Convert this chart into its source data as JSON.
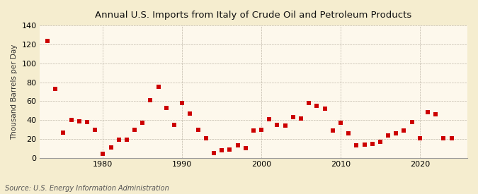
{
  "title": "Annual U.S. Imports from Italy of Crude Oil and Petroleum Products",
  "ylabel": "Thousand Barrels per Day",
  "source": "Source: U.S. Energy Information Administration",
  "background_color": "#f5edcf",
  "plot_background_color": "#fdf8ec",
  "marker_color": "#cc0000",
  "marker_size": 14,
  "ylim": [
    0,
    140
  ],
  "yticks": [
    0,
    20,
    40,
    60,
    80,
    100,
    120,
    140
  ],
  "xticks": [
    1980,
    1990,
    2000,
    2010,
    2020
  ],
  "xlim": [
    1972,
    2026
  ],
  "years": [
    1973,
    1974,
    1975,
    1976,
    1977,
    1978,
    1979,
    1980,
    1981,
    1982,
    1983,
    1984,
    1985,
    1986,
    1987,
    1988,
    1989,
    1990,
    1991,
    1992,
    1993,
    1994,
    1995,
    1996,
    1997,
    1998,
    1999,
    2000,
    2001,
    2002,
    2003,
    2004,
    2005,
    2006,
    2007,
    2008,
    2009,
    2010,
    2011,
    2012,
    2013,
    2014,
    2015,
    2016,
    2017,
    2018,
    2019,
    2020,
    2021,
    2022,
    2023,
    2024
  ],
  "values": [
    124,
    73,
    27,
    40,
    39,
    38,
    30,
    4,
    11,
    19,
    19,
    30,
    37,
    61,
    75,
    53,
    35,
    58,
    47,
    30,
    21,
    5,
    8,
    9,
    13,
    10,
    29,
    30,
    41,
    35,
    34,
    43,
    42,
    58,
    55,
    52,
    29,
    37,
    26,
    13,
    14,
    15,
    17,
    24,
    26,
    29,
    38,
    21,
    48,
    46,
    21,
    21
  ]
}
